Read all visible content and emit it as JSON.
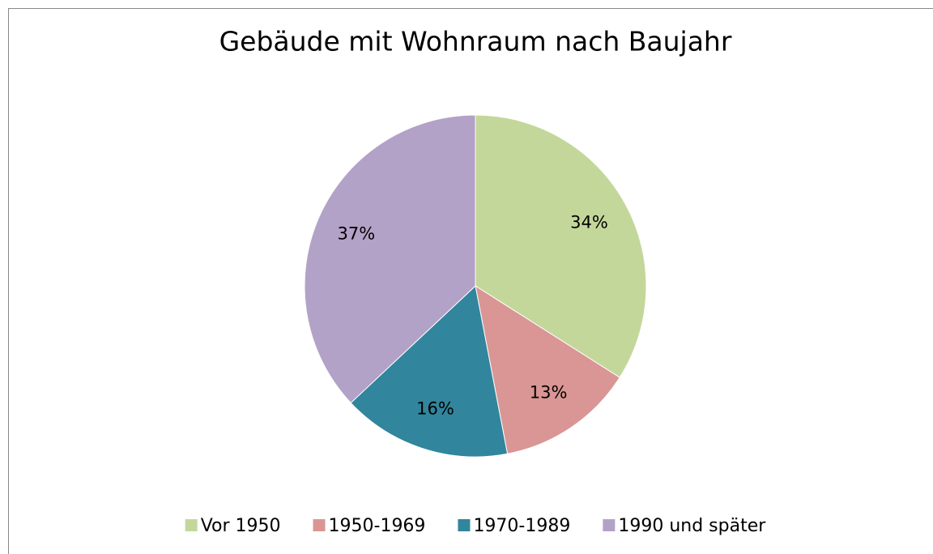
{
  "chart_data": {
    "type": "pie",
    "title": "Gebäude mit Wohnraum nach Baujahr",
    "categories": [
      "Vor 1950",
      "1950-1969",
      "1970-1989",
      "1990 und später"
    ],
    "values": [
      34,
      13,
      16,
      37
    ],
    "value_labels": [
      "34%",
      "13%",
      "16%",
      "37%"
    ],
    "colors": [
      "#c4d79b",
      "#d99694",
      "#31859c",
      "#b3a2c7"
    ],
    "legend": "bottom"
  }
}
